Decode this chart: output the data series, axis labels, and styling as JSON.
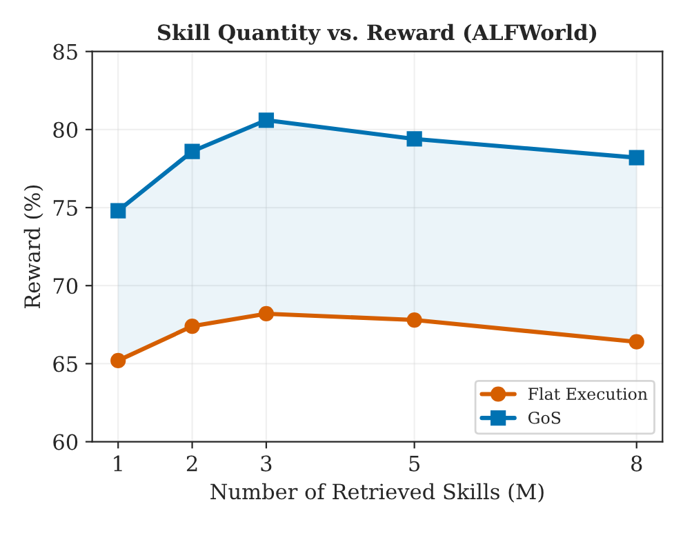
{
  "chart_data": {
    "type": "line",
    "title": "Skill Quantity vs. Reward (ALFWorld)",
    "xlabel": "Number of Retrieved Skills (M)",
    "ylabel": "Reward (%)",
    "x": [
      1,
      2,
      3,
      5,
      8
    ],
    "series": [
      {
        "name": "Flat Execution",
        "color": "#d55e00",
        "marker": "circle",
        "values": [
          65.2,
          67.4,
          68.2,
          67.8,
          66.4
        ]
      },
      {
        "name": "GoS",
        "color": "#0072b2",
        "marker": "square",
        "values": [
          74.8,
          78.6,
          80.6,
          79.4,
          78.2
        ],
        "lower": [
          65.2,
          67.4,
          68.2,
          67.8,
          66.4
        ],
        "upper": [
          74.8,
          78.6,
          80.6,
          79.4,
          78.2
        ]
      }
    ],
    "xlim": [
      0.65,
      8.35
    ],
    "xticks": [
      1,
      2,
      3,
      5,
      8
    ],
    "ylim": [
      60,
      85
    ],
    "yticks": [
      60,
      65,
      70,
      75,
      80,
      85
    ],
    "grid": true,
    "legend": "bottom right",
    "line_style": "solid"
  }
}
